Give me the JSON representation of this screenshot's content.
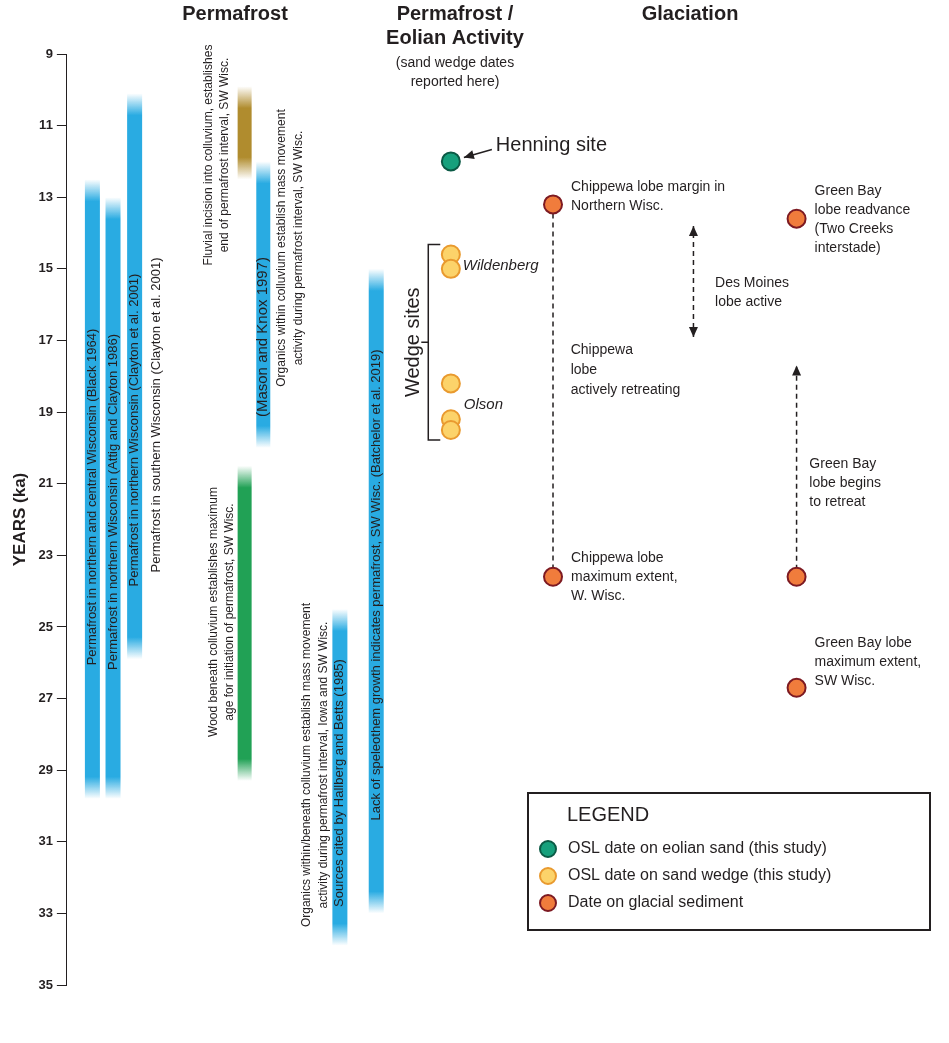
{
  "chart_data": {
    "type": "timeline",
    "ylabel": "YEARS (ka)",
    "ylim": [
      35,
      9
    ],
    "yticks": [
      9,
      11,
      13,
      15,
      17,
      19,
      21,
      23,
      25,
      27,
      29,
      31,
      33,
      35
    ],
    "grid": false,
    "tick_labels": "y",
    "column_titles": [
      {
        "lines": [
          "Permafrost"
        ]
      },
      {
        "lines": [
          "Permafrost /",
          "Eolian Activity"
        ],
        "subtitle": [
          "(sand wedge dates",
          "reported here)"
        ]
      },
      {
        "lines": [
          "Glaciation"
        ]
      }
    ],
    "ranges": [
      {
        "label": [
          "Permafrost in northern and central Wisconsin (Black 1964)"
        ],
        "start": 12.5,
        "end": 29.8,
        "color": "#29abe2"
      },
      {
        "label": [
          "Permafrost in northern Wisconsin (Attig and Clayton 1986)"
        ],
        "start": 13.0,
        "end": 29.8,
        "color": "#29abe2"
      },
      {
        "label": [
          "Permafrost in northern Wisconsin (Clayton et al. 2001)"
        ],
        "start": 10.1,
        "end": 25.9,
        "color": "#29abe2"
      },
      {
        "description": [
          "Fluvial incision into colluvium, establishes",
          "end of permafrost interval, SW Wisc."
        ],
        "start": 9.9,
        "end": 12.5,
        "color": "#b08c2e"
      },
      {
        "label": [
          "(Mason and Knox 1997)"
        ],
        "description": [
          "Organics within colluvium establish mass movement",
          "activity during permafrost interval, SW Wisc."
        ],
        "start": 12.0,
        "end": 20.0,
        "color": "#29abe2"
      },
      {
        "description": [
          "Wood beneath colluvium establishes maximum",
          "age for initiation of permafrost, SW Wisc."
        ],
        "start": 20.5,
        "end": 29.3,
        "color": "#21a155"
      },
      {
        "label": [
          "Sources cited by Hallberg and Betts (1985)"
        ],
        "description": [
          "Organics within/beneath colluvium establish mass movement",
          "activity during permafrost interval, Iowa and SW Wisc."
        ],
        "start": 24.5,
        "end": 33.9,
        "color": "#29abe2"
      },
      {
        "label": [
          "Lack of speleothem growth indicates permafrost, SW Wisc. (Batchelor et al. 2019)"
        ],
        "start": 15.0,
        "end": 33.0,
        "color": "#29abe2"
      }
    ],
    "texts": [
      {
        "lines": [
          "Permafrost in southern Wisconsin (Clayton et al. 2001)"
        ]
      },
      {
        "lines": [
          "Chippewa",
          "lobe",
          "actively retreating"
        ]
      }
    ],
    "series": [
      {
        "name": "OSL date on eolian sand (this study)",
        "color": "#16a07c",
        "values": [
          12.0
        ],
        "point_labels": [
          "Henning site"
        ]
      },
      {
        "name": "OSL date on sand wedge (this study)",
        "color": "#fcd36a",
        "values": [
          14.6,
          15.0,
          18.2,
          19.2,
          19.5
        ],
        "point_labels": [
          null,
          "Wildenberg",
          null,
          "Olson",
          null
        ],
        "group_label": "Wedge sites"
      },
      {
        "name": "Date on glacial sediment",
        "color": "#f07c3c",
        "values": [
          13.2,
          23.6,
          13.6,
          23.6,
          26.7
        ],
        "point_labels": [
          [
            "Chippewa lobe margin in",
            "Northern Wisc."
          ],
          [
            "Chippewa lobe",
            "maximum extent,",
            "W. Wisc."
          ],
          [
            "Green Bay",
            "lobe readvance",
            "(Two Creeks",
            "interstade)"
          ],
          null,
          [
            "Green Bay lobe",
            "maximum extent,",
            "SW Wisc."
          ]
        ]
      }
    ],
    "arrows": [
      {
        "from": 16.9,
        "to": 13.8,
        "label": [
          "Des Moines",
          "lobe active"
        ]
      },
      {
        "from": 23.4,
        "to": 17.7,
        "label": [
          "Green Bay",
          "lobe begins",
          "to retreat"
        ]
      }
    ],
    "legend": "lower right",
    "legend_title": "LEGEND"
  }
}
